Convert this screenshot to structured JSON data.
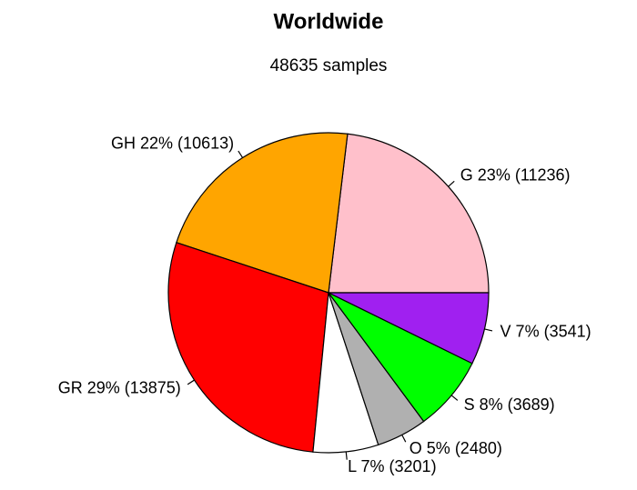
{
  "chart_data": {
    "type": "pie",
    "title": "Worldwide",
    "subtitle": "48635 samples",
    "values": [
      11236,
      10613,
      13875,
      3201,
      2480,
      3689,
      3541
    ],
    "value_labels": [
      "G 23% (11236)",
      "GH 22% (10613)",
      "GR 29% (13875)",
      "L 7% (3201)",
      "O 5% (2480)",
      "S 8% (3689)",
      "V 7% (3541)"
    ],
    "colors": [
      "#ffc0cb",
      "#ffa500",
      "#ff0000",
      "#ffffff",
      "#b0b0b0",
      "#00ff00",
      "#a020f0"
    ]
  }
}
